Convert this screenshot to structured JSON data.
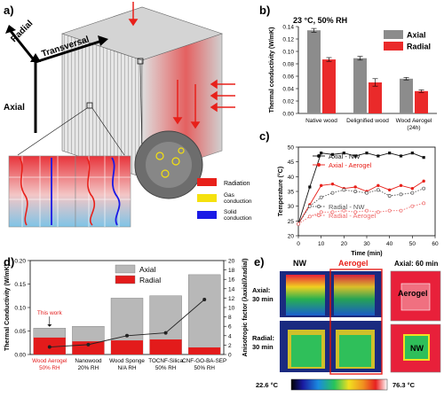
{
  "panels": {
    "a": {
      "letter": "a)",
      "axes": {
        "radial": "Radial",
        "transversal": "Transversal",
        "axial": "Axial"
      },
      "legend": [
        {
          "label": "Radiation",
          "color": "#e8201a"
        },
        {
          "label": "Gas conduction",
          "color": "#f5e10e"
        },
        {
          "label": "Solid conduction",
          "color": "#1a1ae6"
        }
      ]
    },
    "b": {
      "letter": "b)"
    },
    "c": {
      "letter": "c)"
    },
    "d": {
      "letter": "d)"
    },
    "e": {
      "letter": "e)",
      "col_nw": "NW",
      "col_aerogel": "Aerogel",
      "col_axial60": "Axial: 60 min",
      "row_axial": "Axial:",
      "row_axial_time": "30 min",
      "row_radial": "Radial:",
      "row_radial_time": "30 min",
      "inset_aerogel": "Aerogel",
      "inset_nw": "NW",
      "scale_min": "22.6 °C",
      "scale_max": "76.3 °C"
    }
  },
  "chart_data": [
    {
      "id": "b",
      "type": "bar",
      "title": "23 °C, 50% RH",
      "ylabel": "Thermal conductivity (W/mK)",
      "categories": [
        "Native wood",
        "Delignified wood",
        "Wood Aerogel (24h)"
      ],
      "series": [
        {
          "name": "Axial",
          "color": "#8c8c8c",
          "values": [
            0.134,
            0.089,
            0.056
          ],
          "errors": [
            0.003,
            0.003,
            0.002
          ]
        },
        {
          "name": "Radial",
          "color": "#ea2a2a",
          "values": [
            0.087,
            0.05,
            0.036
          ],
          "errors": [
            0.003,
            0.006,
            0.002
          ]
        }
      ],
      "ylim": [
        0,
        0.14
      ],
      "yticks": [
        0.0,
        0.02,
        0.04,
        0.06,
        0.08,
        0.1,
        0.12,
        0.14
      ],
      "legend_position": "top-right"
    },
    {
      "id": "c",
      "type": "line",
      "xlabel": "Time (min)",
      "ylabel": "Temperature (°C)",
      "xlim": [
        0,
        60
      ],
      "ylim": [
        20,
        50
      ],
      "xticks": [
        0,
        10,
        20,
        30,
        40,
        50,
        60
      ],
      "yticks": [
        20,
        25,
        30,
        35,
        40,
        45,
        50
      ],
      "series": [
        {
          "name": "Axial - NW",
          "color": "#111111",
          "marker": "filled-square",
          "dash": "none",
          "x": [
            0,
            5,
            10,
            15,
            20,
            25,
            30,
            35,
            40,
            45,
            50,
            55
          ],
          "y": [
            24,
            36.5,
            48,
            47.5,
            48,
            47,
            48,
            47,
            48,
            47,
            48,
            46.5
          ]
        },
        {
          "name": "Axial - Aerogel",
          "color": "#e8201a",
          "marker": "filled-circle",
          "dash": "none",
          "x": [
            0,
            5,
            10,
            15,
            20,
            25,
            30,
            35,
            40,
            45,
            50,
            55
          ],
          "y": [
            24,
            30.5,
            37,
            37.5,
            36,
            36.5,
            35,
            37,
            35.5,
            37,
            36,
            38.5
          ]
        },
        {
          "name": "Radial - NW",
          "color": "#555555",
          "marker": "open-circle",
          "dash": "dotted",
          "x": [
            0,
            5,
            10,
            15,
            20,
            25,
            30,
            35,
            40,
            45,
            50,
            55
          ],
          "y": [
            24,
            30,
            33,
            34.5,
            35.5,
            35,
            34.5,
            35.5,
            33.5,
            34,
            34.5,
            36
          ]
        },
        {
          "name": "Radial - Aerogel",
          "color": "#ef6a6a",
          "marker": "open-circle",
          "dash": "dotted",
          "x": [
            0,
            5,
            10,
            15,
            20,
            25,
            30,
            35,
            40,
            45,
            50,
            55
          ],
          "y": [
            24,
            26.5,
            28,
            28,
            28.5,
            28,
            28.5,
            28,
            28.5,
            28.5,
            30,
            31
          ]
        }
      ]
    },
    {
      "id": "d",
      "type": "bar",
      "ylabel": "Thermal Conductivity (W/mK)",
      "y2label": "Anisotropic factor (λaxial/λradial)",
      "categories": [
        "Wood Aerogel",
        "Nanowood",
        "Wood Sponge",
        "TOCNF-Silica",
        "CNF-GO-BA-SEP"
      ],
      "subcategories": [
        "50% RH",
        "20% RH",
        "N/A RH",
        "50% RH",
        "50% RH"
      ],
      "annotation": "This work",
      "series": [
        {
          "name": "Axial",
          "color": "#b8b8b8",
          "values": [
            0.056,
            0.06,
            0.12,
            0.125,
            0.17
          ]
        },
        {
          "name": "Radial",
          "color": "#e31b1b",
          "values": [
            0.036,
            0.028,
            0.03,
            0.032,
            0.015
          ]
        },
        {
          "name": "Anisotropic factor",
          "color": "#222222",
          "axis": "right",
          "values": [
            1.6,
            2.1,
            4.0,
            4.6,
            11.7
          ]
        }
      ],
      "ylim": [
        0,
        0.2
      ],
      "yticks": [
        0.0,
        0.05,
        0.1,
        0.15,
        0.2
      ],
      "y2lim": [
        0,
        20
      ],
      "y2ticks": [
        0,
        2,
        4,
        6,
        8,
        10,
        12,
        14,
        16,
        18,
        20
      ],
      "legend_position": "top-center"
    }
  ]
}
